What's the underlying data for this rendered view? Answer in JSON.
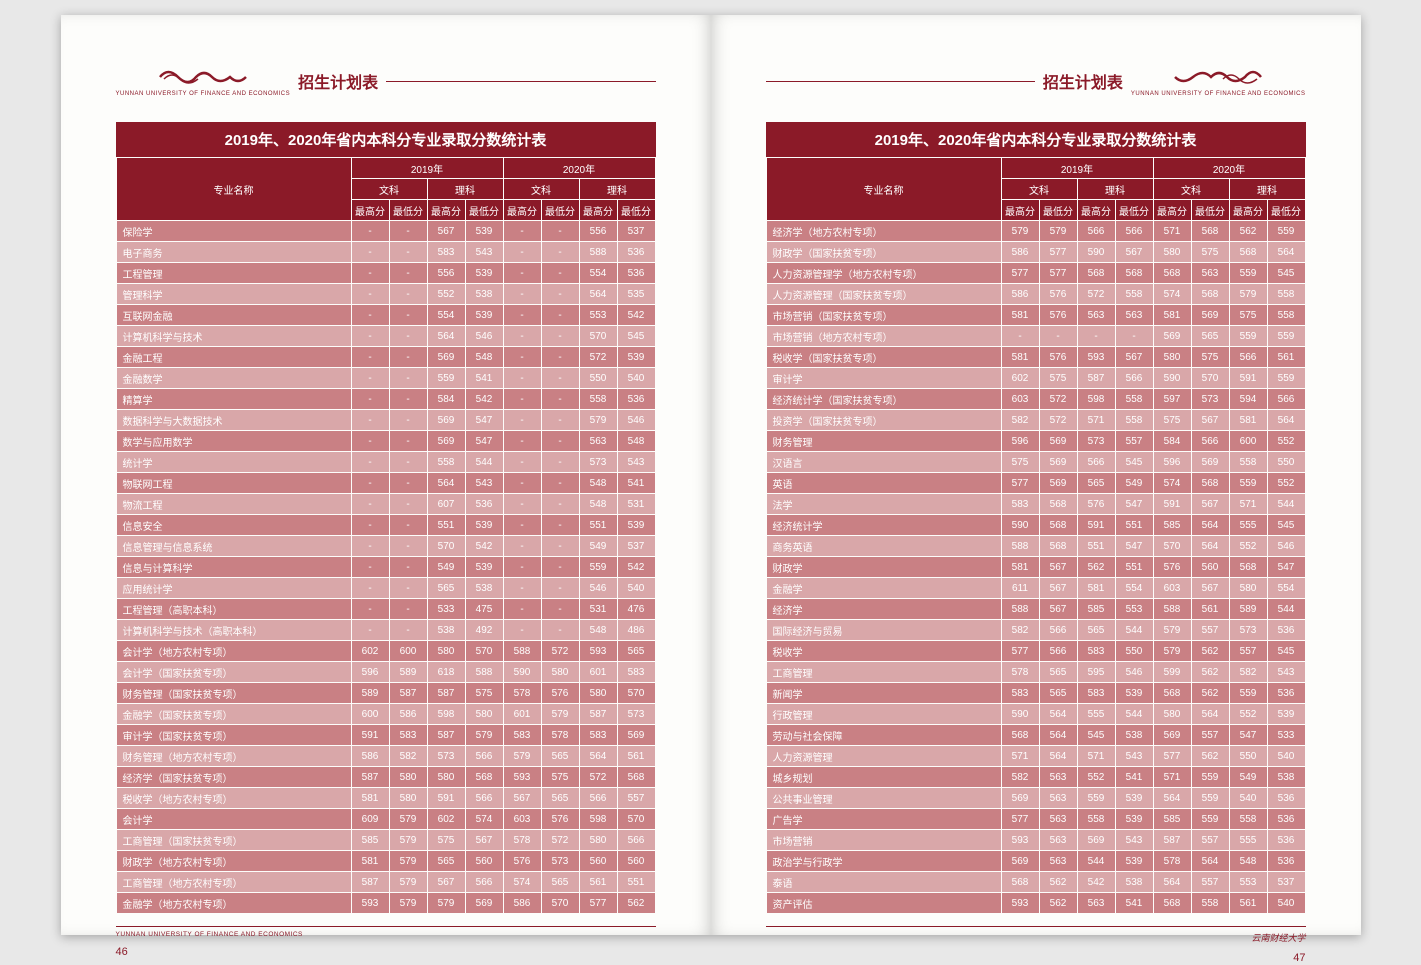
{
  "header_title": "招生计划表",
  "university_en": "YUNNAN UNIVERSITY OF FINANCE AND ECONOMICS",
  "university_cn": "云南财经大学",
  "table_title": "2019年、2020年省内本科分专业录取分数统计表",
  "col_major": "专业名称",
  "year_2019": "2019年",
  "year_2020": "2020年",
  "wen": "文科",
  "li": "理科",
  "max": "最高分",
  "min": "最低分",
  "page_left_num": "46",
  "page_right_num": "47",
  "colors": {
    "brand": "#8b1a28",
    "row_dark": "#c98084",
    "row_light": "#d9a7a9",
    "page_bg": "#fdfdfb"
  },
  "left_rows": [
    {
      "m": "保险学",
      "v": [
        "-",
        "-",
        "567",
        "539",
        "-",
        "-",
        "556",
        "537"
      ]
    },
    {
      "m": "电子商务",
      "v": [
        "-",
        "-",
        "583",
        "543",
        "-",
        "-",
        "588",
        "536"
      ]
    },
    {
      "m": "工程管理",
      "v": [
        "-",
        "-",
        "556",
        "539",
        "-",
        "-",
        "554",
        "536"
      ]
    },
    {
      "m": "管理科学",
      "v": [
        "-",
        "-",
        "552",
        "538",
        "-",
        "-",
        "564",
        "535"
      ]
    },
    {
      "m": "互联网金融",
      "v": [
        "-",
        "-",
        "554",
        "539",
        "-",
        "-",
        "553",
        "542"
      ]
    },
    {
      "m": "计算机科学与技术",
      "v": [
        "-",
        "-",
        "564",
        "546",
        "-",
        "-",
        "570",
        "545"
      ]
    },
    {
      "m": "金融工程",
      "v": [
        "-",
        "-",
        "569",
        "548",
        "-",
        "-",
        "572",
        "539"
      ]
    },
    {
      "m": "金融数学",
      "v": [
        "-",
        "-",
        "559",
        "541",
        "-",
        "-",
        "550",
        "540"
      ]
    },
    {
      "m": "精算学",
      "v": [
        "-",
        "-",
        "584",
        "542",
        "-",
        "-",
        "558",
        "536"
      ]
    },
    {
      "m": "数据科学与大数据技术",
      "v": [
        "-",
        "-",
        "569",
        "547",
        "-",
        "-",
        "579",
        "546"
      ]
    },
    {
      "m": "数学与应用数学",
      "v": [
        "-",
        "-",
        "569",
        "547",
        "-",
        "-",
        "563",
        "548"
      ]
    },
    {
      "m": "统计学",
      "v": [
        "-",
        "-",
        "558",
        "544",
        "-",
        "-",
        "573",
        "543"
      ]
    },
    {
      "m": "物联网工程",
      "v": [
        "-",
        "-",
        "564",
        "543",
        "-",
        "-",
        "548",
        "541"
      ]
    },
    {
      "m": "物流工程",
      "v": [
        "-",
        "-",
        "607",
        "536",
        "-",
        "-",
        "548",
        "531"
      ]
    },
    {
      "m": "信息安全",
      "v": [
        "-",
        "-",
        "551",
        "539",
        "-",
        "-",
        "551",
        "539"
      ]
    },
    {
      "m": "信息管理与信息系统",
      "v": [
        "-",
        "-",
        "570",
        "542",
        "-",
        "-",
        "549",
        "537"
      ]
    },
    {
      "m": "信息与计算科学",
      "v": [
        "-",
        "-",
        "549",
        "539",
        "-",
        "-",
        "559",
        "542"
      ]
    },
    {
      "m": "应用统计学",
      "v": [
        "-",
        "-",
        "565",
        "538",
        "-",
        "-",
        "546",
        "540"
      ]
    },
    {
      "m": "工程管理（高职本科）",
      "v": [
        "-",
        "-",
        "533",
        "475",
        "-",
        "-",
        "531",
        "476"
      ]
    },
    {
      "m": "计算机科学与技术（高职本科）",
      "v": [
        "-",
        "-",
        "538",
        "492",
        "-",
        "-",
        "548",
        "486"
      ]
    },
    {
      "m": "会计学（地方农村专项）",
      "v": [
        "602",
        "600",
        "580",
        "570",
        "588",
        "572",
        "593",
        "565"
      ]
    },
    {
      "m": "会计学（国家扶贫专项）",
      "v": [
        "596",
        "589",
        "618",
        "588",
        "590",
        "580",
        "601",
        "583"
      ]
    },
    {
      "m": "财务管理（国家扶贫专项）",
      "v": [
        "589",
        "587",
        "587",
        "575",
        "578",
        "576",
        "580",
        "570"
      ]
    },
    {
      "m": "金融学（国家扶贫专项）",
      "v": [
        "600",
        "586",
        "598",
        "580",
        "601",
        "579",
        "587",
        "573"
      ]
    },
    {
      "m": "审计学（国家扶贫专项）",
      "v": [
        "591",
        "583",
        "587",
        "579",
        "583",
        "578",
        "583",
        "569"
      ]
    },
    {
      "m": "财务管理（地方农村专项）",
      "v": [
        "586",
        "582",
        "573",
        "566",
        "579",
        "565",
        "564",
        "561"
      ]
    },
    {
      "m": "经济学（国家扶贫专项）",
      "v": [
        "587",
        "580",
        "580",
        "568",
        "593",
        "575",
        "572",
        "568"
      ]
    },
    {
      "m": "税收学（地方农村专项）",
      "v": [
        "581",
        "580",
        "591",
        "566",
        "567",
        "565",
        "566",
        "557"
      ]
    },
    {
      "m": "会计学",
      "v": [
        "609",
        "579",
        "602",
        "574",
        "603",
        "576",
        "598",
        "570"
      ]
    },
    {
      "m": "工商管理（国家扶贫专项）",
      "v": [
        "585",
        "579",
        "575",
        "567",
        "578",
        "572",
        "580",
        "566"
      ]
    },
    {
      "m": "财政学（地方农村专项）",
      "v": [
        "581",
        "579",
        "565",
        "560",
        "576",
        "573",
        "560",
        "560"
      ]
    },
    {
      "m": "工商管理（地方农村专项）",
      "v": [
        "587",
        "579",
        "567",
        "566",
        "574",
        "565",
        "561",
        "551"
      ]
    },
    {
      "m": "金融学（地方农村专项）",
      "v": [
        "593",
        "579",
        "579",
        "569",
        "586",
        "570",
        "577",
        "562"
      ]
    }
  ],
  "right_rows": [
    {
      "m": "经济学（地方农村专项）",
      "v": [
        "579",
        "579",
        "566",
        "566",
        "571",
        "568",
        "562",
        "559"
      ]
    },
    {
      "m": "财政学（国家扶贫专项）",
      "v": [
        "586",
        "577",
        "590",
        "567",
        "580",
        "575",
        "568",
        "564"
      ]
    },
    {
      "m": "人力资源管理学（地方农村专项）",
      "v": [
        "577",
        "577",
        "568",
        "568",
        "568",
        "563",
        "559",
        "545"
      ]
    },
    {
      "m": "人力资源管理（国家扶贫专项）",
      "v": [
        "586",
        "576",
        "572",
        "558",
        "574",
        "568",
        "579",
        "558"
      ]
    },
    {
      "m": "市场营销（国家扶贫专项）",
      "v": [
        "581",
        "576",
        "563",
        "563",
        "581",
        "569",
        "575",
        "558"
      ]
    },
    {
      "m": "市场营销（地方农村专项）",
      "v": [
        "-",
        "-",
        "-",
        "-",
        "569",
        "565",
        "559",
        "559"
      ]
    },
    {
      "m": "税收学（国家扶贫专项）",
      "v": [
        "581",
        "576",
        "593",
        "567",
        "580",
        "575",
        "566",
        "561"
      ]
    },
    {
      "m": "审计学",
      "v": [
        "602",
        "575",
        "587",
        "566",
        "590",
        "570",
        "591",
        "559"
      ]
    },
    {
      "m": "经济统计学（国家扶贫专项）",
      "v": [
        "603",
        "572",
        "598",
        "558",
        "597",
        "573",
        "594",
        "566"
      ]
    },
    {
      "m": "投资学（国家扶贫专项）",
      "v": [
        "582",
        "572",
        "571",
        "558",
        "575",
        "567",
        "581",
        "564"
      ]
    },
    {
      "m": "财务管理",
      "v": [
        "596",
        "569",
        "573",
        "557",
        "584",
        "566",
        "600",
        "552"
      ]
    },
    {
      "m": "汉语言",
      "v": [
        "575",
        "569",
        "566",
        "545",
        "596",
        "569",
        "558",
        "550"
      ]
    },
    {
      "m": "英语",
      "v": [
        "577",
        "569",
        "565",
        "549",
        "574",
        "568",
        "559",
        "552"
      ]
    },
    {
      "m": "法学",
      "v": [
        "583",
        "568",
        "576",
        "547",
        "591",
        "567",
        "571",
        "544"
      ]
    },
    {
      "m": "经济统计学",
      "v": [
        "590",
        "568",
        "591",
        "551",
        "585",
        "564",
        "555",
        "545"
      ]
    },
    {
      "m": "商务英语",
      "v": [
        "588",
        "568",
        "551",
        "547",
        "570",
        "564",
        "552",
        "546"
      ]
    },
    {
      "m": "财政学",
      "v": [
        "581",
        "567",
        "562",
        "551",
        "576",
        "560",
        "568",
        "547"
      ]
    },
    {
      "m": "金融学",
      "v": [
        "611",
        "567",
        "581",
        "554",
        "603",
        "567",
        "580",
        "554"
      ]
    },
    {
      "m": "经济学",
      "v": [
        "588",
        "567",
        "585",
        "553",
        "588",
        "561",
        "589",
        "544"
      ]
    },
    {
      "m": "国际经济与贸易",
      "v": [
        "582",
        "566",
        "565",
        "544",
        "579",
        "557",
        "573",
        "536"
      ]
    },
    {
      "m": "税收学",
      "v": [
        "577",
        "566",
        "583",
        "550",
        "579",
        "562",
        "557",
        "545"
      ]
    },
    {
      "m": "工商管理",
      "v": [
        "578",
        "565",
        "595",
        "546",
        "599",
        "562",
        "582",
        "543"
      ]
    },
    {
      "m": "新闻学",
      "v": [
        "583",
        "565",
        "583",
        "539",
        "568",
        "562",
        "559",
        "536"
      ]
    },
    {
      "m": "行政管理",
      "v": [
        "590",
        "564",
        "555",
        "544",
        "580",
        "564",
        "552",
        "539"
      ]
    },
    {
      "m": "劳动与社会保障",
      "v": [
        "568",
        "564",
        "545",
        "538",
        "569",
        "557",
        "547",
        "533"
      ]
    },
    {
      "m": "人力资源管理",
      "v": [
        "571",
        "564",
        "571",
        "543",
        "577",
        "562",
        "550",
        "540"
      ]
    },
    {
      "m": "城乡规划",
      "v": [
        "582",
        "563",
        "552",
        "541",
        "571",
        "559",
        "549",
        "538"
      ]
    },
    {
      "m": "公共事业管理",
      "v": [
        "569",
        "563",
        "559",
        "539",
        "564",
        "559",
        "540",
        "536"
      ]
    },
    {
      "m": "广告学",
      "v": [
        "577",
        "563",
        "558",
        "539",
        "585",
        "559",
        "558",
        "536"
      ]
    },
    {
      "m": "市场营销",
      "v": [
        "593",
        "563",
        "569",
        "543",
        "587",
        "557",
        "555",
        "536"
      ]
    },
    {
      "m": "政治学与行政学",
      "v": [
        "569",
        "563",
        "544",
        "539",
        "578",
        "564",
        "548",
        "536"
      ]
    },
    {
      "m": "泰语",
      "v": [
        "568",
        "562",
        "542",
        "538",
        "564",
        "557",
        "553",
        "537"
      ]
    },
    {
      "m": "资产评估",
      "v": [
        "593",
        "562",
        "563",
        "541",
        "568",
        "558",
        "561",
        "540"
      ]
    }
  ]
}
